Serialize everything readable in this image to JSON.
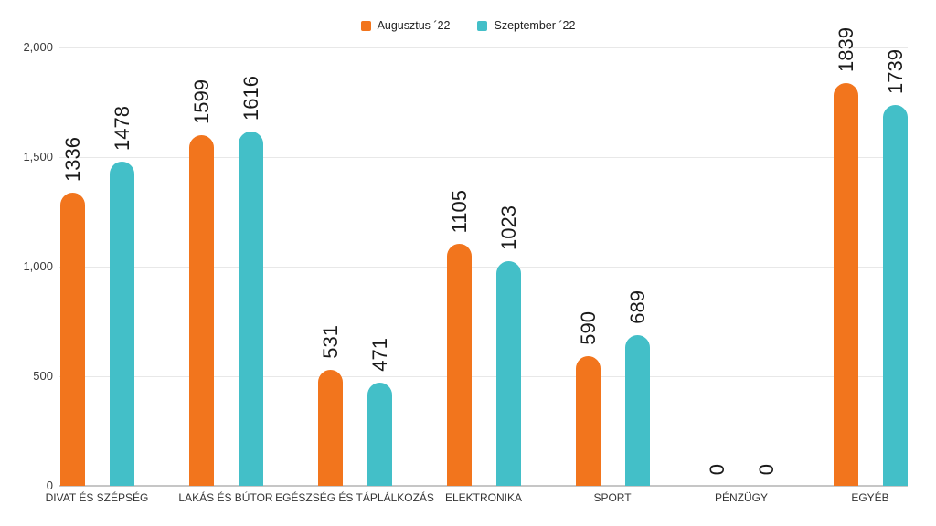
{
  "chart_data": {
    "type": "bar",
    "title": "",
    "xlabel": "",
    "ylabel": "",
    "categories": [
      "DIVAT ÉS SZÉPSÉG",
      "LAKÁS ÉS BÚTOR",
      "EGÉSZSÉG ÉS TÁPLÁLKOZÁS",
      "ELEKTRONIKA",
      "SPORT",
      "PÉNZÜGY",
      "EGYÉB"
    ],
    "series": [
      {
        "name": "Augusztus ´22",
        "color": "#F2751D",
        "values": [
          1336,
          1599,
          531,
          1105,
          590,
          0,
          1839
        ]
      },
      {
        "name": "Szeptember ´22",
        "color": "#43BFC8",
        "values": [
          1478,
          1616,
          471,
          1023,
          689,
          0,
          1739
        ]
      }
    ],
    "ylim": [
      0,
      2000
    ],
    "yticks": [
      0,
      500,
      1000,
      1500,
      2000
    ],
    "ytick_labels": [
      "0",
      "500",
      "1,000",
      "1,500",
      "2,000"
    ],
    "grid": true,
    "legend_position": "top",
    "bar_style": "rounded-top",
    "value_label_style": "rotated-90"
  },
  "colors": {
    "background": "#ffffff",
    "gridline": "#e8e8e8",
    "axis_line": "#c6c6c6",
    "tick_text": "#3a3a3a",
    "value_text": "#1a1a1a",
    "legend_text": "#212121"
  }
}
